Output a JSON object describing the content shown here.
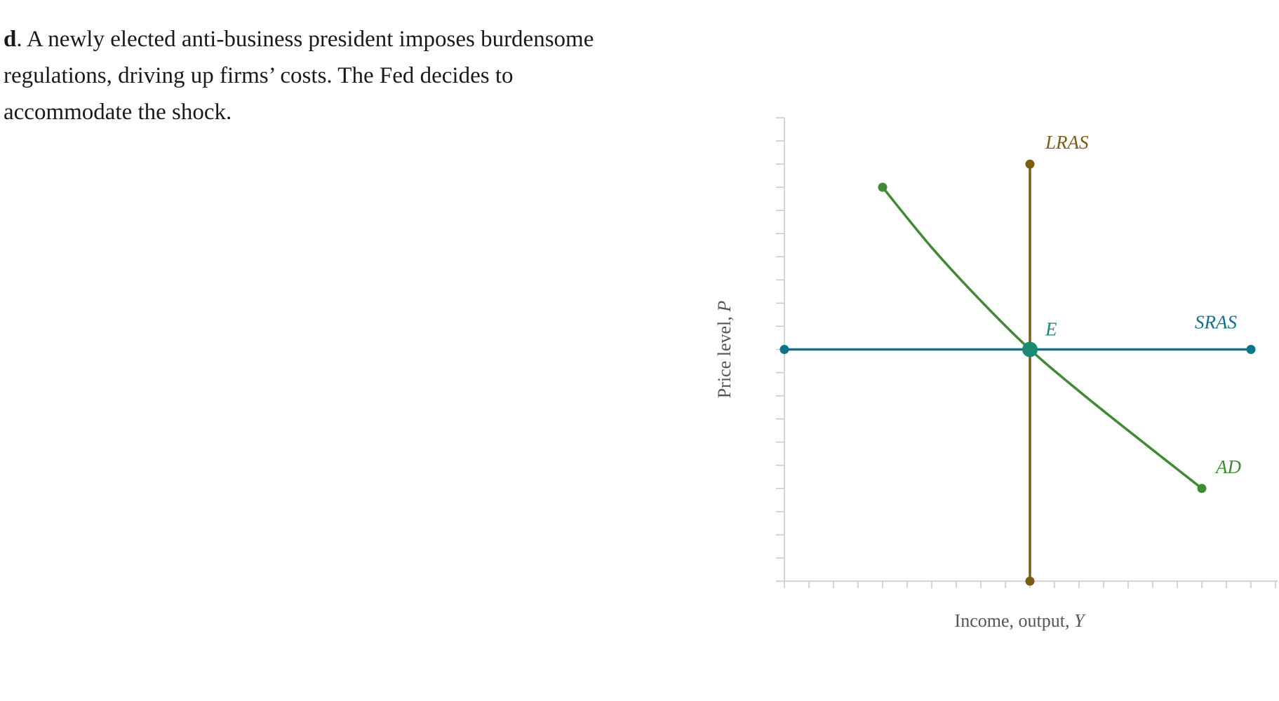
{
  "question": {
    "letter": "d",
    "text": ". A newly elected anti-business president imposes burdensome regulations, driving up firms’ costs. The Fed decides to accommodate the shock."
  },
  "chart_data": {
    "type": "line",
    "title": "",
    "xlabel": "Income, output, ",
    "xlabel_var": "Y",
    "ylabel": "Price level, ",
    "ylabel_var": "P",
    "xlim": [
      0,
      20
    ],
    "ylim": [
      0,
      20
    ],
    "x_ticks": 20,
    "y_ticks": 20,
    "tick_labels_shown": false,
    "series": [
      {
        "name": "LRAS",
        "label": "LRAS",
        "color": "#7a5c14",
        "points": [
          [
            10,
            18
          ],
          [
            10,
            0
          ]
        ]
      },
      {
        "name": "SRAS",
        "label": "SRAS",
        "color": "#0e7489",
        "points": [
          [
            0,
            10
          ],
          [
            19,
            10
          ]
        ]
      },
      {
        "name": "AD",
        "label": "AD",
        "color": "#3f8a33",
        "points": [
          [
            4,
            17
          ],
          [
            6,
            14.4
          ],
          [
            8,
            12.1
          ],
          [
            10,
            10
          ],
          [
            12,
            8.2
          ],
          [
            14,
            6.5
          ],
          [
            17,
            4
          ]
        ]
      }
    ],
    "points": [
      {
        "name": "E",
        "label": "E",
        "x": 10,
        "y": 10,
        "color": "#1a8a73"
      }
    ]
  }
}
